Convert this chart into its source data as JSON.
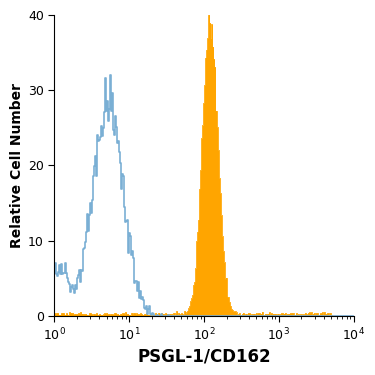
{
  "title": "",
  "xlabel": "PSGL-1/CD162",
  "ylabel": "Relative Cell Number",
  "xlim": [
    1,
    10000
  ],
  "ylim": [
    0,
    40
  ],
  "yticks": [
    0,
    10,
    20,
    30,
    40
  ],
  "xlabel_fontsize": 12,
  "ylabel_fontsize": 10,
  "tick_fontsize": 9,
  "isotype_color": "#7aafd4",
  "filled_color": "#FFA500",
  "background_color": "#ffffff",
  "isotype_peak_log": 0.72,
  "isotype_peak_height": 32,
  "isotype_log_std": 0.2,
  "isotype_secondary_log": 0.08,
  "isotype_secondary_height": 16,
  "filled_peak_log": 2.08,
  "filled_peak_height": 40,
  "filled_log_std": 0.1,
  "n_bins": 300
}
